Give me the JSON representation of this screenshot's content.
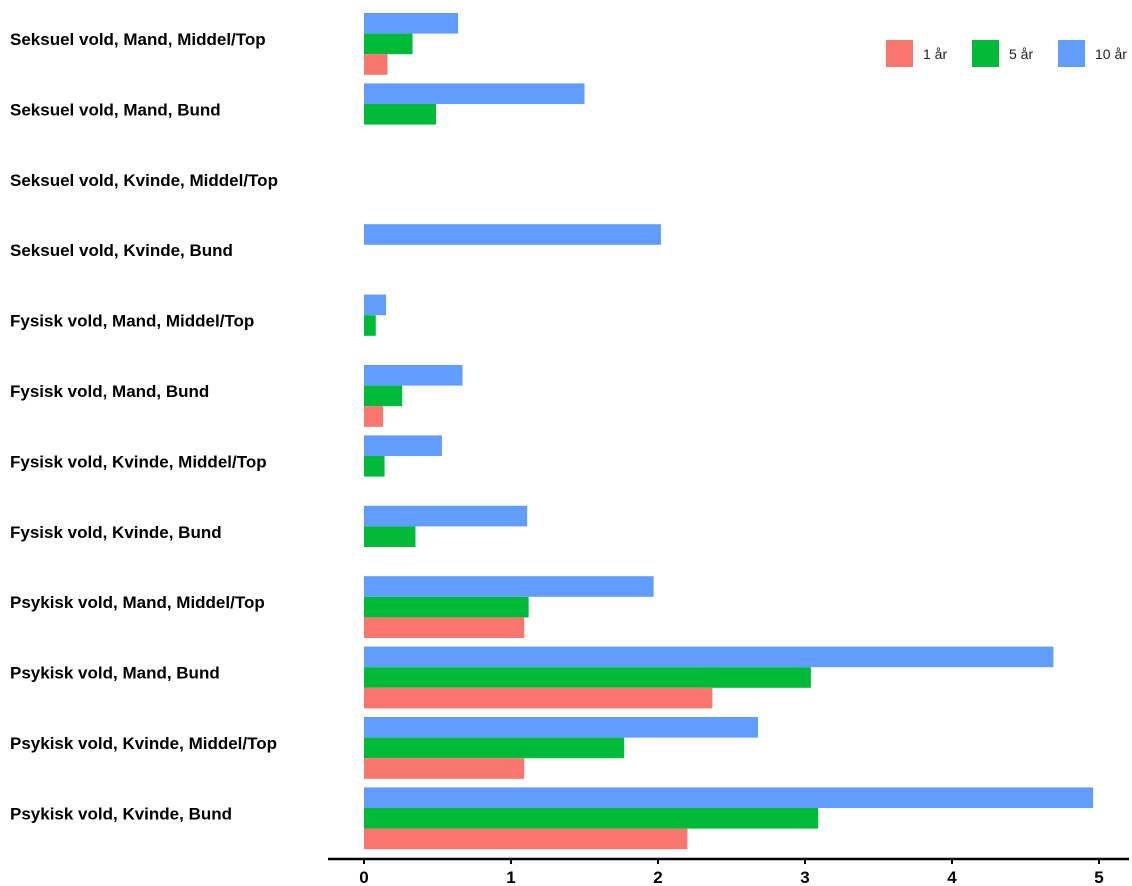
{
  "chart_data": {
    "type": "bar",
    "orientation": "horizontal",
    "categories": [
      "Seksuel vold, Mand, Middel/Top",
      "Seksuel vold, Mand, Bund",
      "Seksuel vold, Kvinde, Middel/Top",
      "Seksuel vold, Kvinde, Bund",
      "Fysisk vold, Mand, Middel/Top",
      "Fysisk vold, Mand, Bund",
      "Fysisk vold, Kvinde, Middel/Top",
      "Fysisk vold, Kvinde, Bund",
      "Psykisk vold, Mand, Middel/Top",
      "Psykisk vold, Mand, Bund",
      "Psykisk vold, Kvinde, Middel/Top",
      "Psykisk vold, Kvinde, Bund"
    ],
    "series": [
      {
        "name": "10 år",
        "color": "#619CFF",
        "values": [
          0.64,
          1.5,
          0,
          2.02,
          0.15,
          0.67,
          0.53,
          1.11,
          1.97,
          4.69,
          2.68,
          4.96
        ]
      },
      {
        "name": "5 år",
        "color": "#00BA38",
        "values": [
          0.33,
          0.49,
          0,
          0,
          0.08,
          0.26,
          0.14,
          0.35,
          1.12,
          3.04,
          1.77,
          3.09
        ]
      },
      {
        "name": "1 år",
        "color": "#F8766D",
        "values": [
          0.16,
          0,
          0,
          0,
          0,
          0.13,
          0,
          0,
          1.09,
          2.37,
          1.09,
          2.2
        ]
      }
    ],
    "legend": {
      "position": "top-right",
      "order": [
        "1 år",
        "5 år",
        "10 år"
      ]
    },
    "xlim": [
      0,
      5
    ],
    "xticks": [
      "0",
      "1",
      "2",
      "3",
      "4",
      "5"
    ],
    "title": "",
    "xlabel": "",
    "ylabel": "",
    "grid": false
  }
}
